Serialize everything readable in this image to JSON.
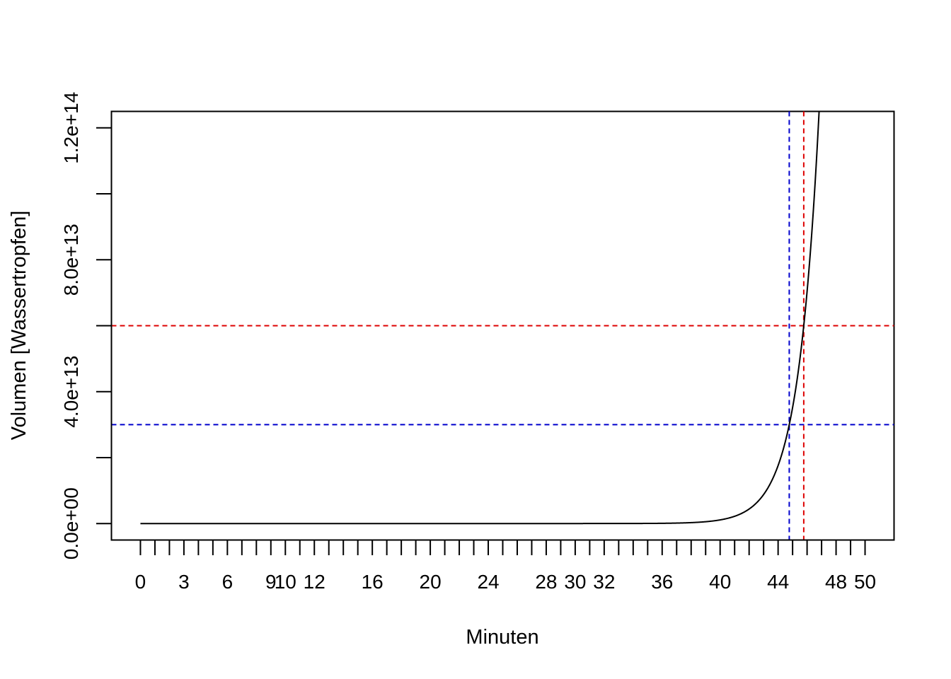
{
  "chart_data": {
    "type": "line",
    "title": "",
    "xlabel": "Minuten",
    "ylabel": "Volumen [Wassertropfen]",
    "xlim": [
      -2,
      52
    ],
    "ylim": [
      -5000000000000.0,
      125000000000000.0
    ],
    "x_ticks": [
      0,
      1,
      2,
      3,
      4,
      5,
      6,
      7,
      8,
      9,
      10,
      11,
      12,
      13,
      14,
      15,
      16,
      17,
      18,
      19,
      20,
      21,
      22,
      23,
      24,
      25,
      26,
      27,
      28,
      29,
      30,
      31,
      32,
      33,
      34,
      35,
      36,
      37,
      38,
      39,
      40,
      41,
      42,
      43,
      44,
      45,
      46,
      47,
      48,
      49,
      50
    ],
    "x_tick_labels": [
      {
        "x": 0,
        "label": "0"
      },
      {
        "x": 3,
        "label": "3"
      },
      {
        "x": 6,
        "label": "6"
      },
      {
        "x": 9,
        "label": "9"
      },
      {
        "x": 10,
        "label": "10"
      },
      {
        "x": 12,
        "label": "12"
      },
      {
        "x": 16,
        "label": "16"
      },
      {
        "x": 20,
        "label": "20"
      },
      {
        "x": 24,
        "label": "24"
      },
      {
        "x": 28,
        "label": "28"
      },
      {
        "x": 30,
        "label": "30"
      },
      {
        "x": 32,
        "label": "32"
      },
      {
        "x": 36,
        "label": "36"
      },
      {
        "x": 40,
        "label": "40"
      },
      {
        "x": 44,
        "label": "44"
      },
      {
        "x": 48,
        "label": "48"
      },
      {
        "x": 50,
        "label": "50"
      }
    ],
    "y_ticks": [
      0,
      20000000000000.0,
      40000000000000.0,
      60000000000000.0,
      80000000000000.0,
      100000000000000.0,
      120000000000000.0
    ],
    "y_tick_labels": [
      {
        "y": 0,
        "label": "0.0e+00"
      },
      {
        "y": 40000000000000.0,
        "label": "4.0e+13"
      },
      {
        "y": 80000000000000.0,
        "label": "8.0e+13"
      },
      {
        "y": 120000000000000.0,
        "label": "1.2e+14"
      }
    ],
    "series": [
      {
        "type": "exponential",
        "color": "#000000",
        "x_start": 0,
        "x_end": 50,
        "base": 2,
        "y_at_x0": 1
      }
    ],
    "reference_lines": [
      {
        "orientation": "horizontal",
        "y": 60000000000000.0,
        "color": "#dd0000",
        "style": "dashed"
      },
      {
        "orientation": "horizontal",
        "y": 30000000000000.0,
        "color": "#0000cc",
        "style": "dashed"
      },
      {
        "orientation": "vertical",
        "x": 44.77,
        "color": "#0000cc",
        "style": "dashed"
      },
      {
        "orientation": "vertical",
        "x": 45.77,
        "color": "#dd0000",
        "style": "dashed"
      }
    ],
    "grid": false,
    "legend": "none"
  }
}
